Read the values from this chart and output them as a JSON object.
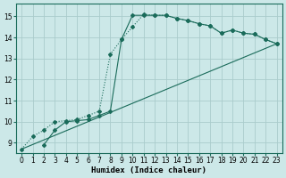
{
  "xlabel": "Humidex (Indice chaleur)",
  "bg_color": "#cce8e8",
  "grid_color": "#aacccc",
  "line_color": "#1a6b5a",
  "xlim": [
    -0.5,
    23.5
  ],
  "ylim": [
    8.5,
    15.6
  ],
  "xticks": [
    0,
    1,
    2,
    3,
    4,
    5,
    6,
    7,
    8,
    9,
    10,
    11,
    12,
    13,
    14,
    15,
    16,
    17,
    18,
    19,
    20,
    21,
    22,
    23
  ],
  "yticks": [
    9,
    10,
    11,
    12,
    13,
    14,
    15
  ],
  "curve1_x": [
    0,
    1,
    2,
    3,
    4,
    5,
    6,
    7,
    8,
    9,
    10,
    11,
    12,
    13,
    14,
    15,
    16,
    17,
    18,
    19,
    20,
    21,
    22,
    23
  ],
  "curve1_y": [
    8.7,
    9.3,
    9.6,
    10.0,
    10.05,
    10.1,
    10.3,
    10.5,
    13.2,
    13.9,
    14.5,
    15.1,
    15.05,
    15.05,
    14.9,
    14.8,
    14.65,
    14.55,
    14.2,
    14.35,
    14.2,
    14.15,
    13.9,
    13.7
  ],
  "curve2_x": [
    2,
    3,
    4,
    5,
    6,
    7,
    8,
    9,
    10,
    11,
    12,
    13,
    14,
    15,
    16,
    17,
    18,
    19,
    20,
    21,
    22,
    23
  ],
  "curve2_y": [
    8.9,
    9.6,
    10.0,
    10.05,
    10.1,
    10.3,
    10.5,
    13.9,
    15.05,
    15.05,
    15.05,
    15.05,
    14.9,
    14.8,
    14.65,
    14.55,
    14.2,
    14.35,
    14.2,
    14.15,
    13.9,
    13.7
  ],
  "line3_x": [
    0,
    23
  ],
  "line3_y": [
    8.7,
    13.7
  ]
}
